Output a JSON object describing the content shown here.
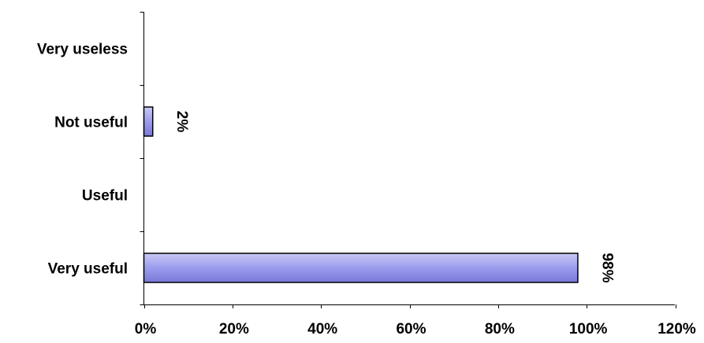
{
  "chart_data": {
    "type": "bar",
    "orientation": "horizontal",
    "categories": [
      "Very useless",
      "Not useful",
      "Useful",
      "Very useful"
    ],
    "values": [
      0,
      2,
      0,
      98
    ],
    "data_labels": [
      "",
      "2%",
      "",
      "98%"
    ],
    "data_label_rotation": "rotated 90 degrees clockwise",
    "x_ticks": [
      0,
      20,
      40,
      60,
      80,
      100,
      120
    ],
    "x_tick_labels": [
      "0%",
      "20%",
      "40%",
      "60%",
      "80%",
      "100%",
      "120%"
    ],
    "xlim": [
      0,
      120
    ],
    "title": "",
    "xlabel": "",
    "ylabel": "",
    "grid": false,
    "legend": "none",
    "colors": {
      "bar_fill_light": "#c8c8f4",
      "bar_fill_mid": "#9c9cee",
      "bar_fill_dark": "#7878d8",
      "bar_outline": "#000000",
      "axis": "#000000",
      "text": "#000000",
      "background": "#ffffff"
    }
  }
}
